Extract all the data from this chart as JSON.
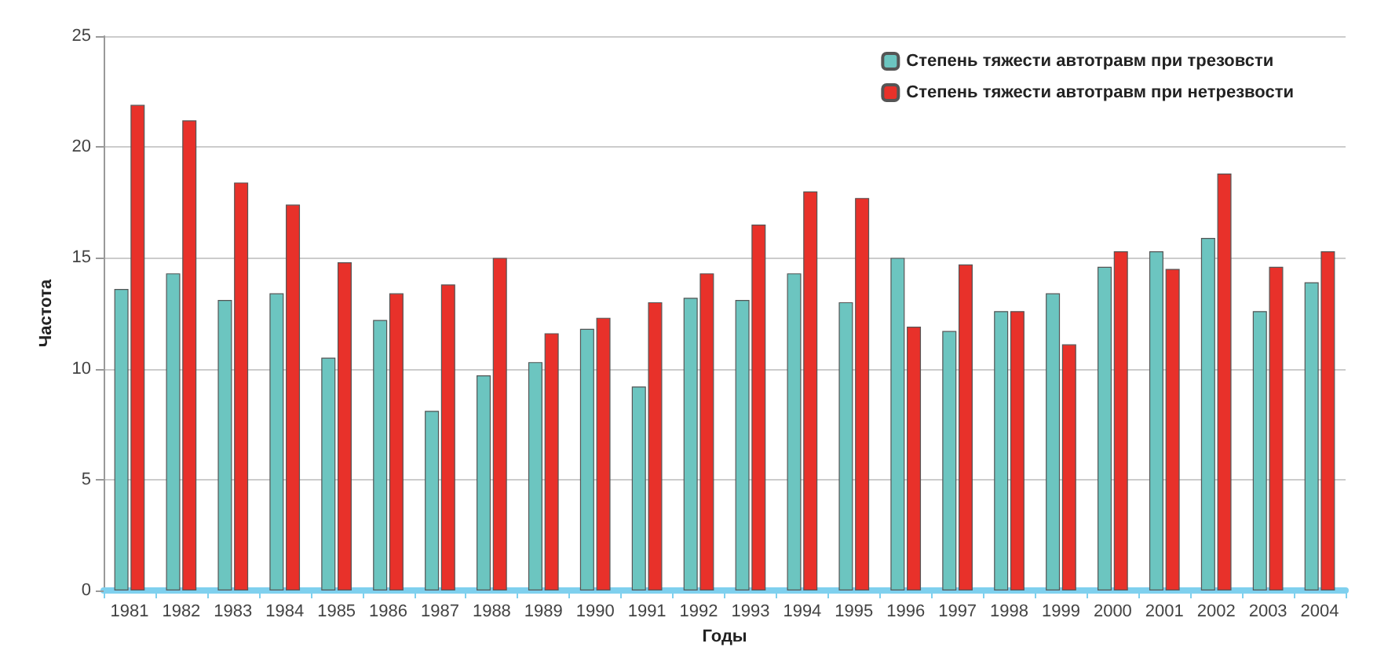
{
  "chart_data": {
    "type": "bar",
    "xlabel": "Годы",
    "ylabel": "Частота",
    "categories": [
      "1981",
      "1982",
      "1983",
      "1984",
      "1985",
      "1986",
      "1987",
      "1988",
      "1989",
      "1990",
      "1991",
      "1992",
      "1993",
      "1994",
      "1995",
      "1996",
      "1997",
      "1998",
      "1999",
      "2000",
      "2001",
      "2002",
      "2003",
      "2004"
    ],
    "series": [
      {
        "name": "Степень тяжести автотравм при трезовсти",
        "color": "#6cc5c0",
        "values": [
          13.6,
          14.3,
          13.1,
          13.4,
          10.5,
          12.2,
          8.1,
          9.7,
          10.3,
          11.8,
          9.2,
          13.2,
          13.1,
          14.3,
          13.0,
          15.0,
          11.7,
          12.6,
          13.4,
          14.6,
          15.3,
          15.9,
          12.6,
          13.9
        ]
      },
      {
        "name": "Степень тяжести автотравм при нетрезвости",
        "color": "#e8312a",
        "values": [
          21.9,
          21.2,
          18.4,
          17.4,
          14.8,
          13.4,
          13.8,
          15.0,
          11.6,
          12.3,
          13.0,
          14.3,
          16.5,
          18.0,
          17.7,
          11.9,
          14.7,
          12.6,
          11.1,
          15.3,
          14.5,
          18.8,
          14.6,
          15.3
        ]
      }
    ],
    "ylim": [
      0,
      25
    ],
    "yticks": [
      0,
      5,
      10,
      15,
      20,
      25
    ],
    "grid": "y",
    "legend": "top right"
  }
}
